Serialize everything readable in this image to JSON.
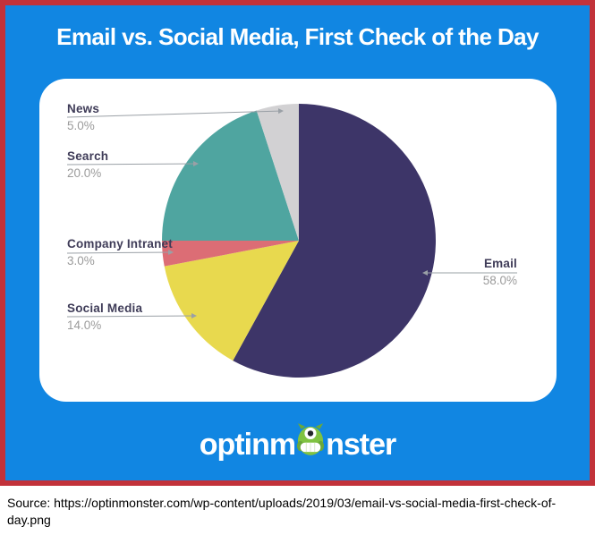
{
  "poster": {
    "title": "Email vs. Social Media, First Check of the Day",
    "background_color": "#1186e2",
    "border_color": "#c2323a",
    "logo": {
      "text_before_icon": "optinm",
      "text_after_icon": "nster",
      "icon": "monster-mascot-icon",
      "icon_color": "#7fc241"
    }
  },
  "chart_data": {
    "type": "pie",
    "title": "Email vs. Social Media, First Check of the Day",
    "categories": [
      "Email",
      "Social Media",
      "Company Intranet",
      "Search",
      "News"
    ],
    "values": [
      58.0,
      14.0,
      3.0,
      20.0,
      5.0
    ],
    "pct_labels": [
      "58.0%",
      "14.0%",
      "3.0%",
      "20.0%",
      "5.0%"
    ],
    "colors": [
      "#3d3568",
      "#e8d94e",
      "#dc6d75",
      "#4fa5a0",
      "#d2d1d3"
    ],
    "unit": "%",
    "start_angle_deg": 0,
    "direction": "clockwise",
    "legend_position": "external-callout-labels",
    "label_style": {
      "name_color": "#3f3c58",
      "pct_color": "#9b9b9b",
      "line_color": "#9aa0a6"
    }
  },
  "caption": {
    "source_text": "Source: https://optinmonster.com/wp-content/uploads/2019/03/email-vs-social-media-first-check-of-day.png"
  }
}
